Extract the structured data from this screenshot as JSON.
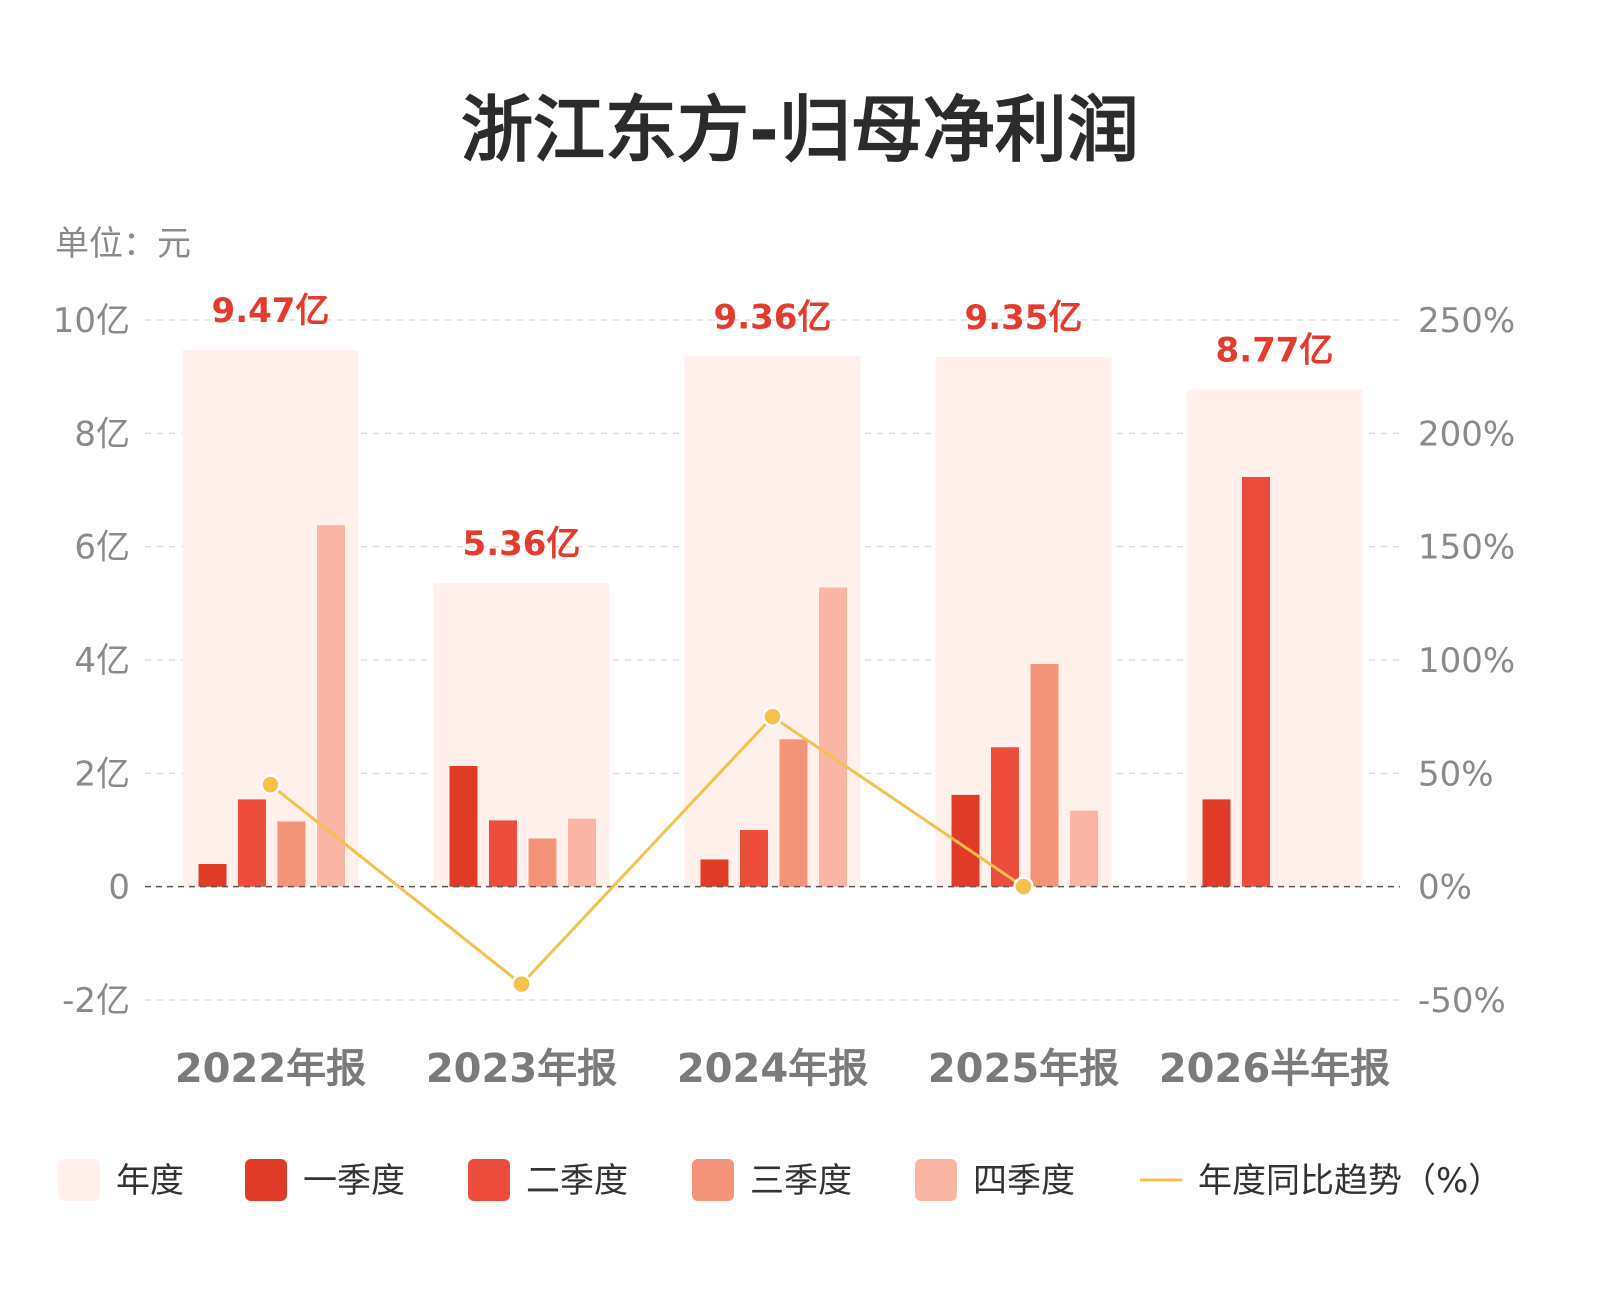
{
  "chart_data": {
    "type": "bar",
    "title": "浙江东方-归母净利润",
    "unit_label": "单位：元",
    "categories": [
      "2022年报",
      "2023年报",
      "2024年报",
      "2025年报",
      "2026半年报"
    ],
    "annual_totals": [
      9.47,
      5.36,
      9.36,
      9.35,
      8.77
    ],
    "annual_total_labels": [
      "9.47亿",
      "5.36亿",
      "9.36亿",
      "9.35亿",
      "8.77亿"
    ],
    "series": [
      {
        "name": "一季度",
        "color": "#e03a28",
        "values": [
          0.4,
          2.13,
          0.48,
          1.62,
          1.54
        ]
      },
      {
        "name": "二季度",
        "color": "#ec4d3d",
        "values": [
          1.54,
          1.17,
          1.0,
          2.46,
          7.23
        ]
      },
      {
        "name": "三季度",
        "color": "#f2937a",
        "values": [
          1.15,
          0.85,
          2.6,
          3.93,
          null
        ]
      },
      {
        "name": "四季度",
        "color": "#fbb5a5",
        "values": [
          6.38,
          1.2,
          5.28,
          1.34,
          null
        ]
      }
    ],
    "annual_series": {
      "name": "年度",
      "color": "#fff0ec"
    },
    "trend": {
      "name": "年度同比趋势（%）",
      "color": "#f4c14d",
      "values": [
        45,
        -43,
        75,
        0,
        null
      ]
    },
    "y_left": {
      "min": -2,
      "max": 10,
      "ticks": [
        "-2亿",
        "0",
        "2亿",
        "4亿",
        "6亿",
        "8亿",
        "10亿"
      ]
    },
    "y_right": {
      "min": -50,
      "max": 250,
      "ticks": [
        "-50%",
        "0%",
        "50%",
        "100%",
        "150%",
        "200%",
        "250%"
      ]
    },
    "grid": true,
    "legend_position": "bottom"
  }
}
